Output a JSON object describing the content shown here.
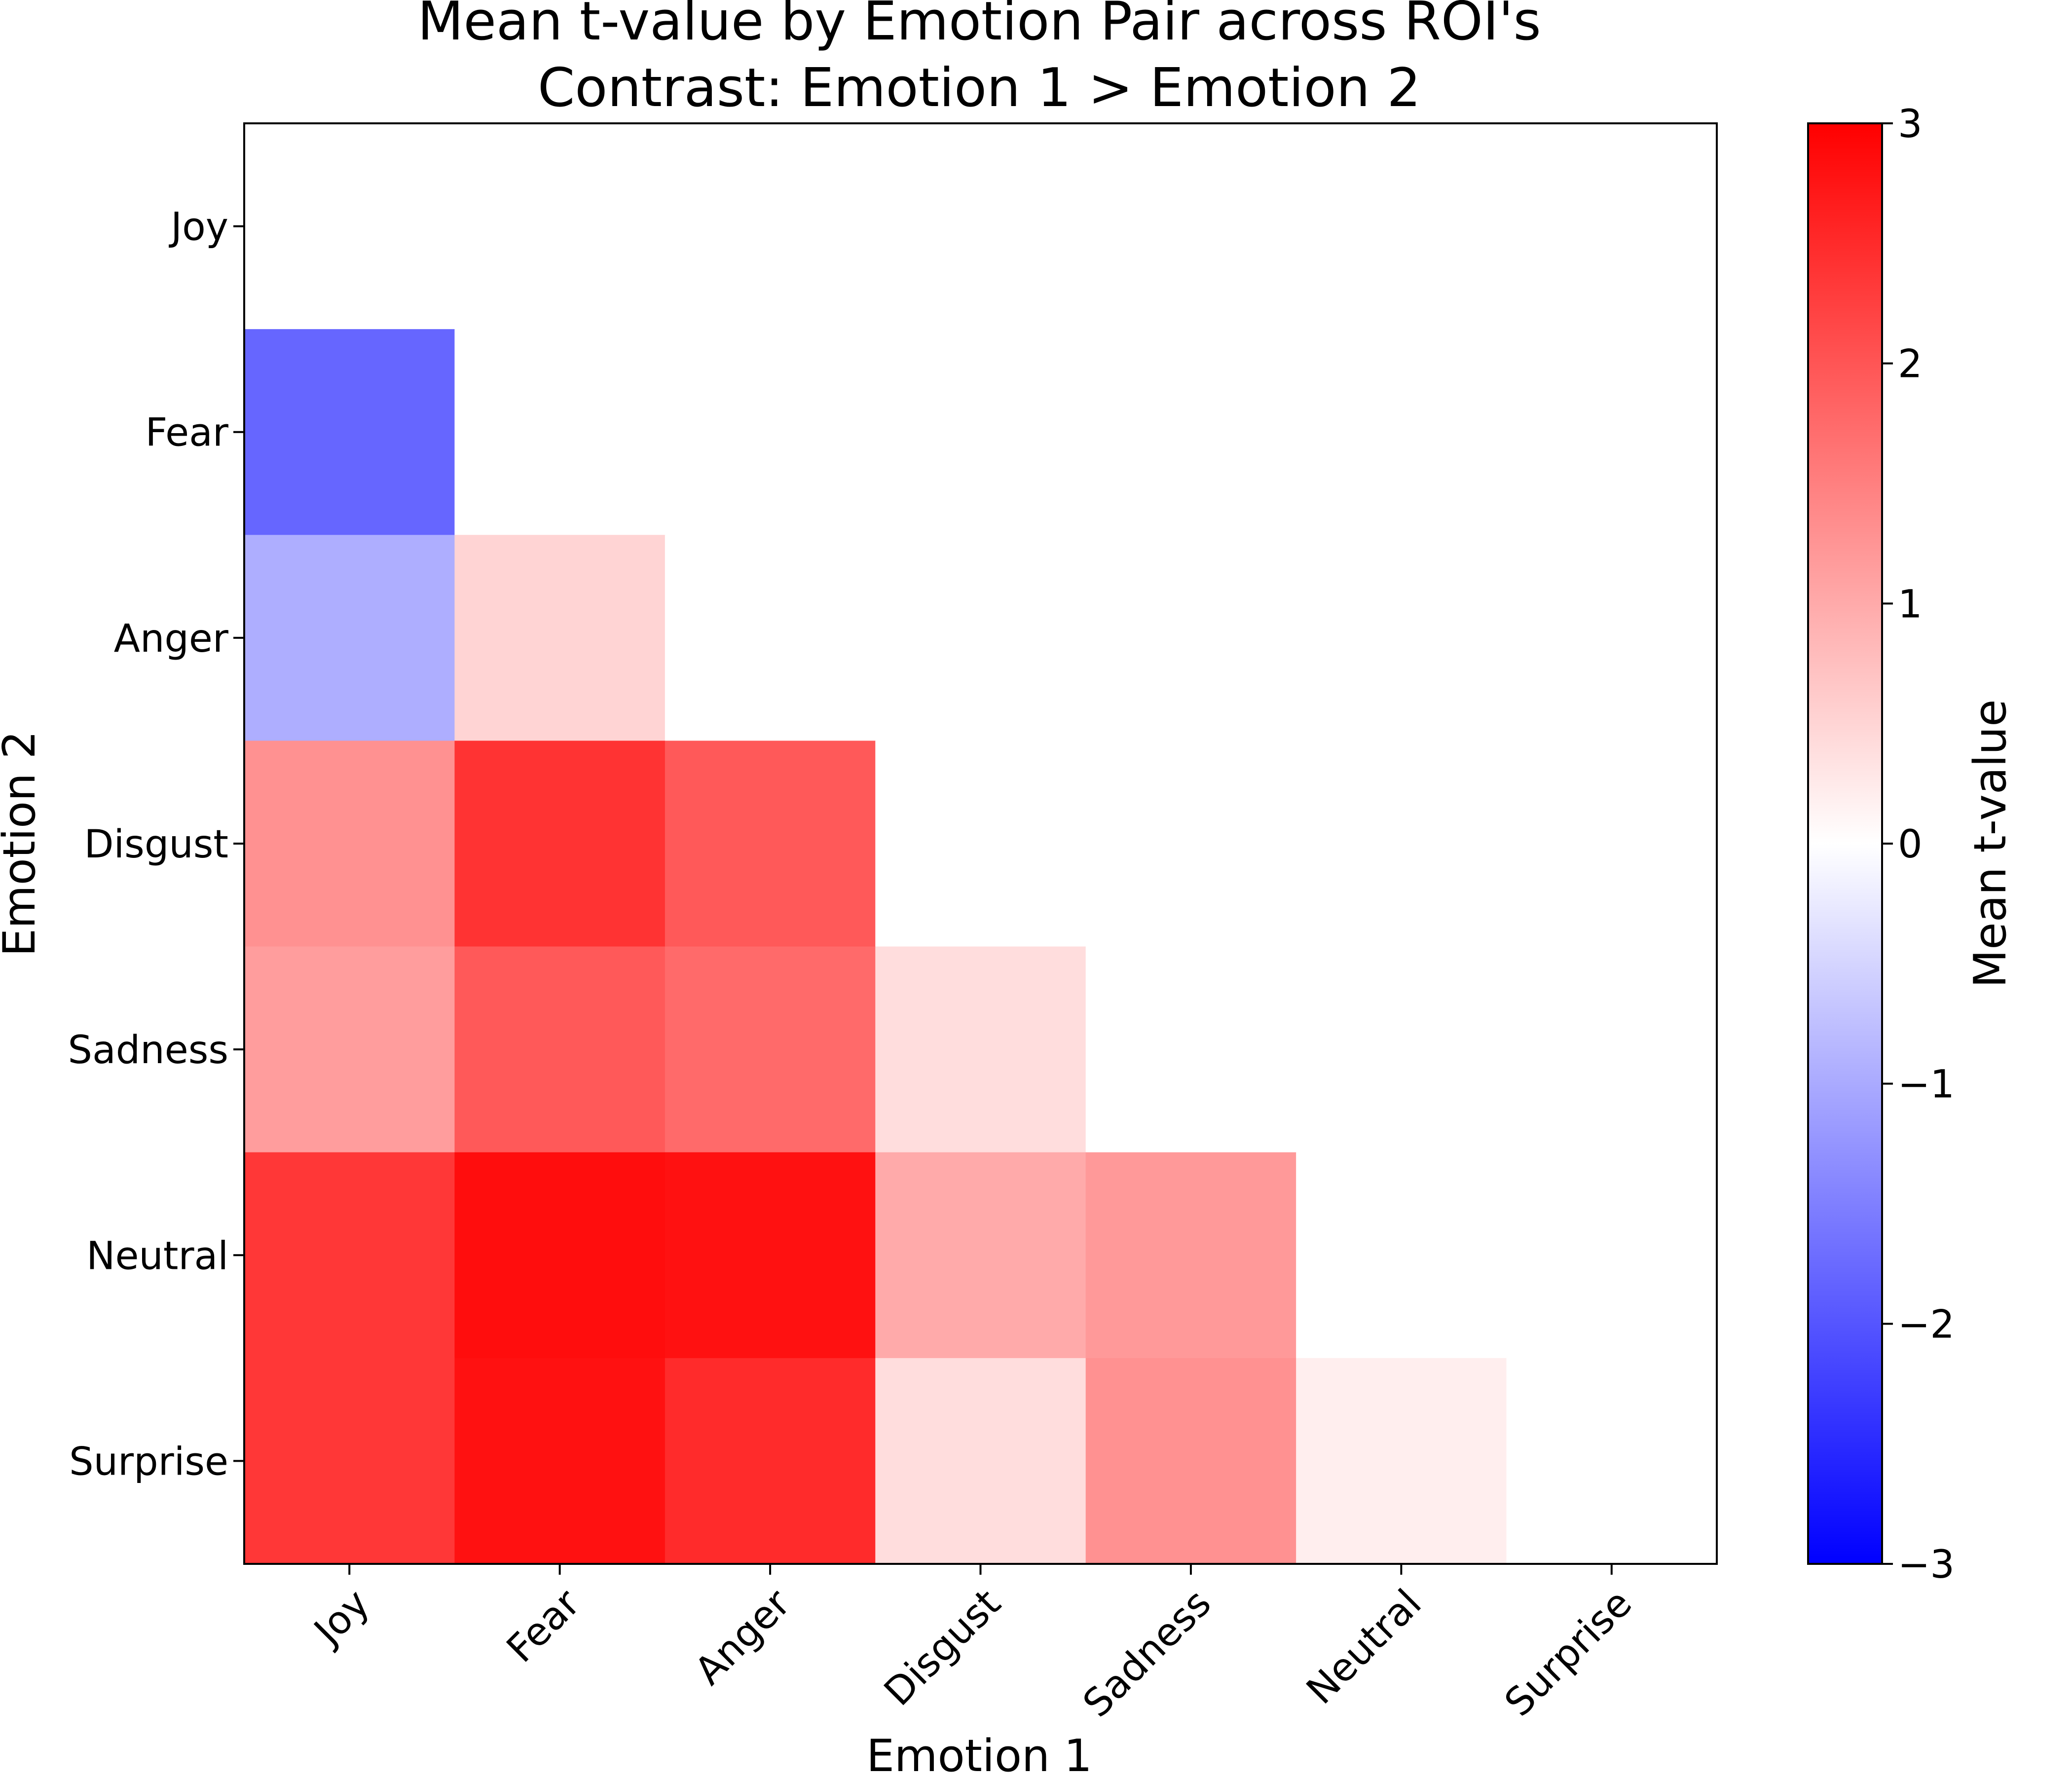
{
  "chart_data": {
    "type": "heatmap",
    "title_line1": "Mean t-value by Emotion Pair across ROI's",
    "title_line2": "Contrast: Emotion 1 > Emotion 2",
    "xlabel": "Emotion 1",
    "ylabel": "Emotion 2",
    "x_categories": [
      "Joy",
      "Fear",
      "Anger",
      "Disgust",
      "Sadness",
      "Neutral",
      "Surprise"
    ],
    "y_categories": [
      "Joy",
      "Fear",
      "Anger",
      "Disgust",
      "Sadness",
      "Neutral",
      "Surprise"
    ],
    "matrix": [
      [
        0.0,
        null,
        null,
        null,
        null,
        null,
        null
      ],
      [
        -1.8,
        0.0,
        null,
        null,
        null,
        null,
        null
      ],
      [
        -0.95,
        0.5,
        0.0,
        null,
        null,
        null,
        null
      ],
      [
        1.3,
        2.4,
        1.95,
        0.0,
        null,
        null,
        null
      ],
      [
        1.15,
        1.95,
        1.75,
        0.4,
        0.0,
        null,
        null
      ],
      [
        2.35,
        2.85,
        2.8,
        1.0,
        1.2,
        0.0,
        null
      ],
      [
        2.35,
        2.8,
        2.5,
        0.4,
        1.3,
        0.2,
        0.0
      ]
    ],
    "colormap": "bwr",
    "vmin": -3,
    "vmax": 3,
    "colorbar": {
      "label": "Mean t-value",
      "ticks": [
        -3,
        -2,
        -1,
        0,
        1,
        2,
        3
      ],
      "tick_labels": [
        "−3",
        "−2",
        "−1",
        "0",
        "1",
        "2",
        "3"
      ]
    },
    "grid": false
  }
}
